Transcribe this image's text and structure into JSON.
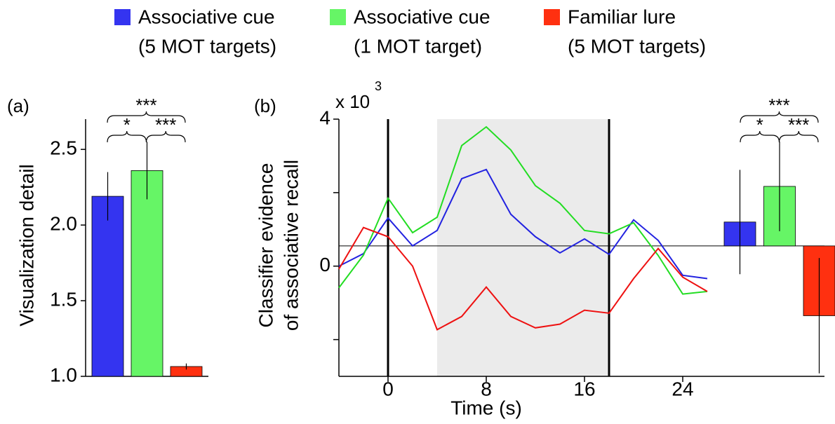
{
  "legend": [
    {
      "name": "Associative cue",
      "detail": "(5 MOT targets)",
      "color": "#3434f0"
    },
    {
      "name": "Associative cue",
      "detail": "(1 MOT target)",
      "color": "#66f566"
    },
    {
      "name": "Familiar lure",
      "detail": "(5 MOT targets)",
      "color": "#ff3010"
    }
  ],
  "chart_data": [
    {
      "type": "bar",
      "panel": "(a)",
      "ylabel": "Visualization detail",
      "ylim": [
        1.0,
        2.7
      ],
      "yticks": [
        {
          "value": 1,
          "label": "1.0"
        },
        {
          "value": 1.5,
          "label": "1.5"
        },
        {
          "value": 2,
          "label": "2.0"
        },
        {
          "value": 2.5,
          "label": "2.5"
        }
      ],
      "values": [
        2.19,
        2.36,
        1.065
      ],
      "errors": [
        0.16,
        0.19,
        0.02
      ],
      "significance": [
        "***",
        "*",
        "***"
      ]
    },
    {
      "type": "line",
      "panel": "(b)",
      "ylabel": [
        "Classifier evidence",
        "of associative recall"
      ],
      "xlabel": "Time (s)",
      "multiplier": "x 10",
      "multiplier_exp": "3",
      "x": [
        -4,
        -2,
        0,
        2,
        4,
        6,
        8,
        10,
        12,
        14,
        16,
        18,
        20,
        22,
        24,
        26
      ],
      "xlim": [
        -4,
        26
      ],
      "xticks": [
        0,
        8,
        16,
        24
      ],
      "ylim": [
        -3,
        4
      ],
      "yticks": [
        0,
        4
      ],
      "yminor": [
        -2,
        2
      ],
      "shade": [
        4,
        18
      ],
      "vlines": [
        0,
        18
      ],
      "hline": 0.55,
      "series": [
        {
          "color": "#2222e0",
          "values": [
            0,
            0.34,
            1.31,
            0.55,
            0.97,
            2.38,
            2.63,
            1.41,
            0.8,
            0.36,
            0.74,
            0.32,
            1.26,
            0.7,
            -0.25,
            -0.34
          ]
        },
        {
          "color": "#22dd22",
          "values": [
            -0.59,
            0.3,
            1.85,
            0.91,
            1.33,
            3.28,
            3.79,
            3.16,
            2.19,
            1.71,
            0.97,
            0.88,
            1.18,
            0.29,
            -0.76,
            -0.69
          ]
        },
        {
          "color": "#ee1111",
          "values": [
            -0.08,
            1.05,
            0.8,
            0,
            -1.73,
            -1.37,
            -0.57,
            -1.37,
            -1.68,
            -1.58,
            -1.2,
            -1.28,
            -0.34,
            0.48,
            -0.3,
            -0.69
          ]
        }
      ],
      "bars": {
        "values": [
          1.2,
          2.17,
          -1.35
        ],
        "errors": [
          1.42,
          1.22,
          1.57
        ]
      },
      "significance": [
        "***",
        "*",
        "***"
      ]
    }
  ]
}
